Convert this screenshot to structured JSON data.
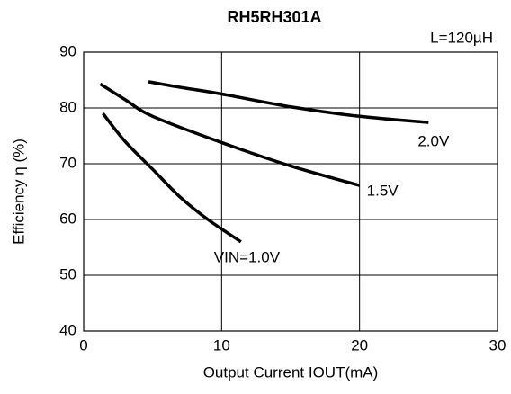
{
  "chart_data": {
    "type": "line",
    "title": "RH5RH301A",
    "annotation": "L=120µH",
    "x_label": "Output Current IOUT(mA)",
    "y_label": "Efficiency η (%)",
    "xlim": [
      0,
      30
    ],
    "xticks": [
      0,
      10,
      20,
      30
    ],
    "ylim": [
      40,
      90
    ],
    "yticks": [
      40,
      50,
      60,
      70,
      80,
      90
    ],
    "grid": true,
    "series": [
      {
        "name": "2.0V",
        "color": "#000000",
        "x": [
          4.7,
          7,
          10,
          15,
          20,
          25
        ],
        "values": [
          84.7,
          83.7,
          82.5,
          80.2,
          78.5,
          77.4
        ]
      },
      {
        "name": "1.5V",
        "color": "#000000",
        "x": [
          1.2,
          3,
          5,
          10,
          15,
          20
        ],
        "values": [
          84.3,
          81.5,
          78.5,
          73.8,
          69.6,
          66.1
        ]
      },
      {
        "name": "VIN=1.0V",
        "color": "#000000",
        "x": [
          1.4,
          3,
          5,
          7,
          9,
          11.4
        ],
        "values": [
          79,
          74,
          69,
          64,
          60,
          56
        ]
      }
    ]
  }
}
